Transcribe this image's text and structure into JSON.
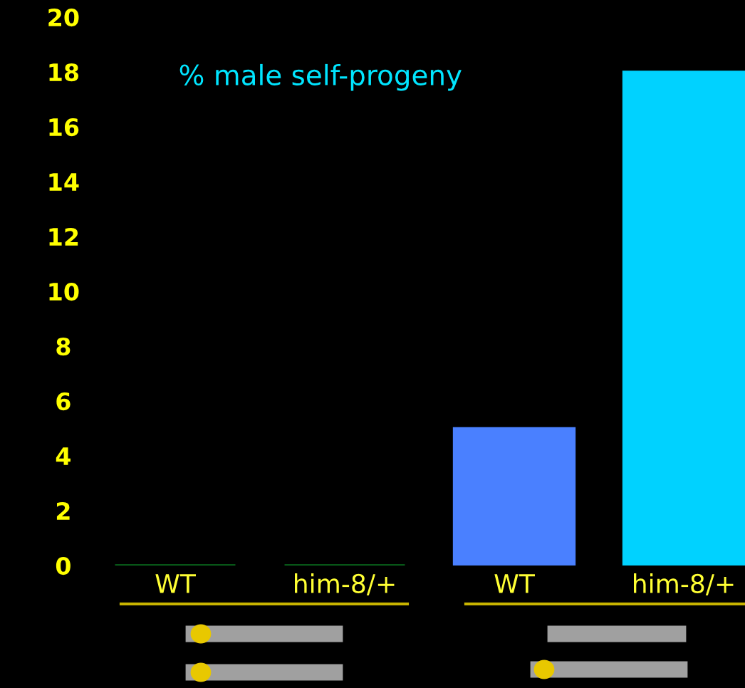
{
  "chart_data": {
    "type": "bar",
    "title": "% male self-progeny",
    "categories": [
      "WT",
      "him-8/+",
      "WT",
      "him-8/+"
    ],
    "values": [
      0,
      0,
      5,
      18
    ],
    "colors": [
      "#0a6e1e",
      "#0a6e1e",
      "#4a80ff",
      "#00d2ff"
    ],
    "ylim": [
      0,
      20
    ],
    "yticks": [
      0,
      2,
      4,
      6,
      8,
      10,
      12,
      14,
      16,
      18,
      20
    ],
    "grid": false,
    "legend": false
  }
}
